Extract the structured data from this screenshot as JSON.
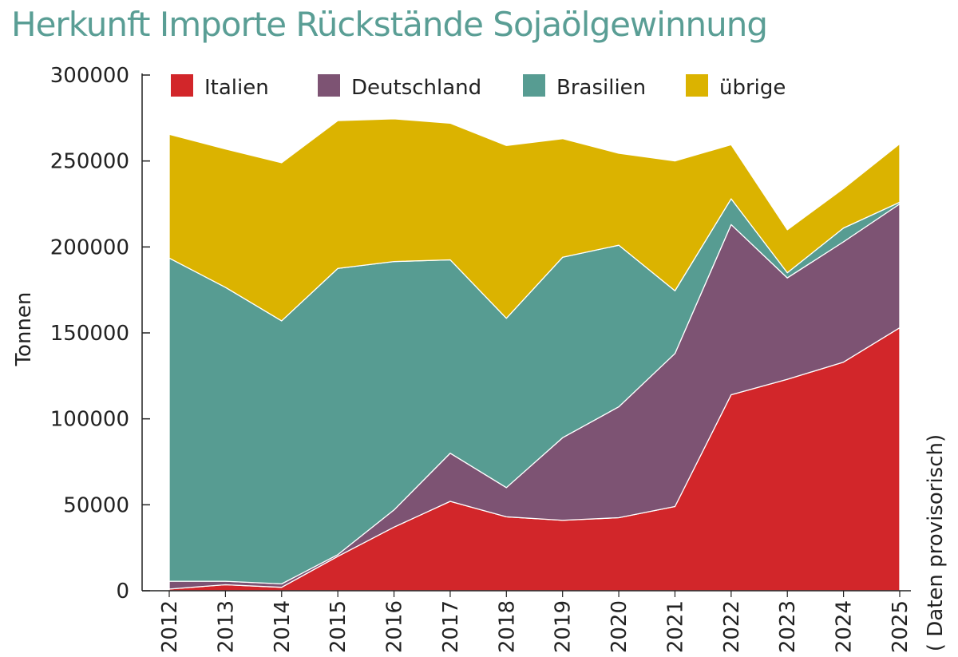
{
  "title": "Herkunft Importe Rückstände Sojaölgewinnung",
  "chart_data": {
    "type": "area",
    "stacked": true,
    "ylabel": "Tonnen",
    "note": "( Daten provisorisch)",
    "ylim": [
      0,
      300000
    ],
    "yticks": [
      "0",
      "50000",
      "100000",
      "150000",
      "200000",
      "250000",
      "300000"
    ],
    "categories": [
      "2012",
      "2013",
      "2014",
      "2015",
      "2016",
      "2017",
      "2018",
      "2019",
      "2020",
      "2021",
      "2022",
      "2023",
      "2024",
      "2025"
    ],
    "legend_position": "top",
    "series": [
      {
        "name": "Italien",
        "color": "#d2262a",
        "values": [
          1000,
          3500,
          2000,
          20000,
          37000,
          52000,
          43000,
          41000,
          42500,
          49000,
          114000,
          123000,
          133000,
          153000
        ]
      },
      {
        "name": "Deutschland",
        "color": "#7d5373",
        "values": [
          4500,
          2000,
          2000,
          1000,
          10000,
          28000,
          17000,
          48000,
          64500,
          89000,
          99000,
          59000,
          70000,
          72000
        ]
      },
      {
        "name": "Brasilien",
        "color": "#579c92",
        "values": [
          188000,
          171000,
          153000,
          166500,
          144500,
          112500,
          98500,
          105000,
          94000,
          36500,
          15000,
          3000,
          8000,
          1000
        ]
      },
      {
        "name": "übrige",
        "color": "#dbb300",
        "values": [
          72000,
          80500,
          92000,
          86000,
          83000,
          79500,
          100500,
          69000,
          53500,
          75500,
          31500,
          25000,
          23000,
          34000
        ]
      }
    ]
  }
}
